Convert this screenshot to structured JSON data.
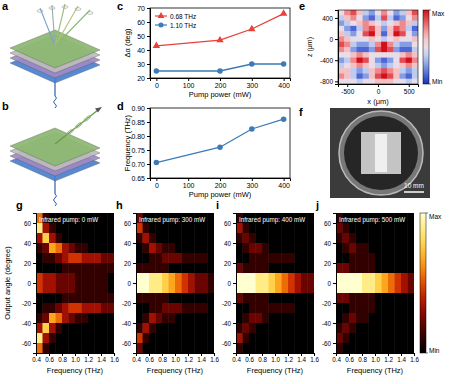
{
  "chart_data": [
    {
      "type": "illustration",
      "panel_label": "a"
    },
    {
      "type": "illustration",
      "panel_label": "b"
    },
    {
      "type": "line",
      "panel_label": "c",
      "x_label": "Pump power (mW)",
      "y_label": "Δα (deg)",
      "x": [
        0,
        200,
        300,
        400
      ],
      "series": [
        {
          "name": "0.68 THz",
          "color": "#e8403a",
          "marker": "triangle",
          "values": [
            43,
            47,
            55,
            66
          ]
        },
        {
          "name": "1.10 THz",
          "color": "#3c7ab8",
          "marker": "circle",
          "values": [
            25,
            25,
            30,
            30
          ]
        }
      ],
      "xlim": [
        -20,
        420
      ],
      "xticks": [
        0,
        100,
        200,
        300,
        400
      ],
      "ylim": [
        20,
        70
      ],
      "yticks": [
        20,
        30,
        40,
        50,
        60,
        70
      ],
      "legend": "upper left"
    },
    {
      "type": "line",
      "panel_label": "d",
      "x_label": "Pump power (mW)",
      "y_label": "Frequency (THz)",
      "x": [
        0,
        200,
        300,
        400
      ],
      "series": [
        {
          "color": "#3c7ab8",
          "marker": "circle",
          "values": [
            0.705,
            0.76,
            0.825,
            0.86
          ]
        }
      ],
      "xlim": [
        -20,
        420
      ],
      "xticks": [
        0,
        100,
        200,
        300,
        400
      ],
      "ylim": [
        0.65,
        0.9
      ],
      "yticks": [
        0.65,
        {
          "value": 0.7,
          "label": "0.70"
        },
        0.75,
        {
          "value": 0.8,
          "label": "0.80"
        },
        0.85,
        {
          "value": 0.9,
          "label": "0.90"
        }
      ]
    },
    {
      "type": "heatmap",
      "panel_label": "e",
      "x_label": "x (μm)",
      "y_label": "z (μm)",
      "x": [
        -600,
        -500,
        -400,
        -300,
        -200,
        -100,
        0,
        100,
        200,
        300,
        400,
        500,
        600
      ],
      "y": [
        500,
        400,
        300,
        200,
        100,
        0,
        -100,
        -200,
        -300,
        -400,
        -500,
        -600,
        -700,
        -800
      ],
      "values": [
        [
          4,
          6,
          7,
          5,
          3,
          2,
          4,
          6,
          4,
          2,
          3,
          5,
          7
        ],
        [
          3,
          5,
          6,
          4,
          2,
          1,
          3,
          7,
          3,
          1,
          2,
          4,
          6
        ],
        [
          2,
          3,
          4,
          5,
          6,
          5,
          4,
          3,
          4,
          5,
          6,
          5,
          3
        ],
        [
          4,
          2,
          1,
          3,
          6,
          7,
          5,
          2,
          5,
          7,
          6,
          3,
          1
        ],
        [
          5,
          3,
          2,
          4,
          7,
          8,
          5,
          1,
          5,
          8,
          7,
          4,
          2
        ],
        [
          6,
          5,
          4,
          4,
          4,
          5,
          4,
          3,
          4,
          5,
          4,
          4,
          5
        ],
        [
          7,
          6,
          3,
          2,
          2,
          3,
          6,
          8,
          6,
          3,
          2,
          2,
          4
        ],
        [
          6,
          5,
          2,
          1,
          1,
          2,
          7,
          8,
          7,
          2,
          1,
          1,
          3
        ],
        [
          4,
          4,
          5,
          6,
          5,
          4,
          4,
          4,
          4,
          4,
          5,
          6,
          5
        ],
        [
          2,
          3,
          6,
          8,
          7,
          4,
          2,
          1,
          2,
          4,
          7,
          8,
          6
        ],
        [
          3,
          4,
          5,
          6,
          5,
          4,
          3,
          2,
          3,
          4,
          5,
          6,
          5
        ],
        [
          5,
          5,
          3,
          2,
          3,
          5,
          6,
          7,
          6,
          5,
          3,
          2,
          3
        ],
        [
          6,
          5,
          3,
          1,
          2,
          5,
          7,
          8,
          7,
          5,
          2,
          1,
          3
        ],
        [
          4,
          4,
          4,
          3,
          4,
          4,
          5,
          5,
          5,
          4,
          4,
          3,
          4
        ]
      ],
      "xlim": [
        -650,
        650
      ],
      "xticks": [
        -500,
        0,
        500
      ],
      "ylim": [
        -850,
        550
      ],
      "yticks": [
        -800,
        -400,
        0,
        400
      ],
      "colorbar": {
        "range": [
          0,
          8
        ],
        "ticks": [
          {
            "value": 8,
            "label": "Max"
          },
          {
            "value": 0,
            "label": "Min"
          }
        ]
      }
    },
    {
      "type": "photo",
      "panel_label": "f",
      "scale_bar": "10 mm"
    },
    {
      "type": "heatmap",
      "panel_label": "g",
      "title": "Infrared pump: 0 mW",
      "x_label": "Frequency (THz)",
      "y_label": "Output angle (degree)",
      "x": [
        0.45,
        0.55,
        0.65,
        0.75,
        0.85,
        0.95,
        1.05,
        1.15,
        1.25,
        1.35,
        1.45,
        1.55
      ],
      "y": [
        65,
        55,
        45,
        35,
        25,
        15,
        5,
        -5,
        -15,
        -25,
        -35,
        -45,
        -55,
        -65
      ],
      "values": [
        [
          5,
          1,
          0,
          0,
          0,
          0,
          0,
          0,
          0,
          0,
          0,
          0
        ],
        [
          8,
          3,
          1,
          0,
          0,
          0,
          0,
          0,
          0,
          0,
          0,
          0
        ],
        [
          3,
          7,
          3,
          1,
          0,
          0,
          0,
          0,
          0,
          0,
          0,
          0
        ],
        [
          1,
          2,
          6,
          5,
          3,
          2,
          1,
          1,
          0,
          0,
          0,
          0
        ],
        [
          0,
          1,
          1,
          2,
          3,
          4,
          4,
          3,
          3,
          3,
          2,
          2
        ],
        [
          0,
          0,
          0,
          0,
          1,
          1,
          1,
          1,
          1,
          1,
          1,
          1
        ],
        [
          4,
          3,
          3,
          2,
          2,
          2,
          1,
          1,
          1,
          1,
          1,
          0
        ],
        [
          4,
          3,
          3,
          2,
          2,
          2,
          1,
          1,
          1,
          1,
          1,
          0
        ],
        [
          0,
          0,
          0,
          0,
          1,
          1,
          1,
          1,
          1,
          1,
          1,
          1
        ],
        [
          0,
          1,
          1,
          2,
          3,
          4,
          4,
          3,
          3,
          3,
          2,
          2
        ],
        [
          1,
          2,
          6,
          5,
          3,
          2,
          1,
          1,
          0,
          0,
          0,
          0
        ],
        [
          3,
          7,
          3,
          1,
          0,
          0,
          0,
          0,
          0,
          0,
          0,
          0
        ],
        [
          8,
          3,
          1,
          0,
          0,
          0,
          0,
          0,
          0,
          0,
          0,
          0
        ],
        [
          5,
          1,
          0,
          0,
          0,
          0,
          0,
          0,
          0,
          0,
          0,
          0
        ]
      ],
      "xlim": [
        0.4,
        1.6
      ],
      "xticks": [
        0.4,
        0.6,
        0.8,
        {
          "value": 1,
          "label": "1.0"
        },
        1.2,
        1.4,
        1.6
      ],
      "ylim": [
        -70,
        70
      ],
      "yticks": [
        60,
        40,
        20,
        0,
        -20,
        -40,
        -60
      ]
    },
    {
      "type": "heatmap",
      "panel_label": "h",
      "title": "Infrared pump: 300 mW",
      "x_label": "Frequency (THz)",
      "x": [
        0.45,
        0.55,
        0.65,
        0.75,
        0.85,
        0.95,
        1.05,
        1.15,
        1.25,
        1.35,
        1.45,
        1.55
      ],
      "y": [
        65,
        55,
        45,
        35,
        25,
        15,
        5,
        -5,
        -15,
        -25,
        -35,
        -45,
        -55,
        -65
      ],
      "values": [
        [
          2,
          0,
          0,
          0,
          0,
          0,
          0,
          0,
          0,
          0,
          0,
          0
        ],
        [
          4,
          1,
          0,
          0,
          0,
          0,
          0,
          0,
          0,
          0,
          0,
          0
        ],
        [
          1,
          3,
          1,
          0,
          0,
          0,
          0,
          0,
          0,
          0,
          0,
          0
        ],
        [
          0,
          1,
          3,
          2,
          1,
          1,
          0,
          0,
          0,
          0,
          0,
          0
        ],
        [
          0,
          0,
          1,
          1,
          2,
          2,
          2,
          1,
          1,
          1,
          1,
          0
        ],
        [
          1,
          1,
          1,
          1,
          1,
          0,
          0,
          0,
          0,
          0,
          0,
          0
        ],
        [
          9,
          9,
          8,
          8,
          7,
          6,
          5,
          4,
          3,
          2,
          2,
          1
        ],
        [
          9,
          9,
          8,
          8,
          7,
          6,
          5,
          4,
          3,
          2,
          2,
          1
        ],
        [
          1,
          1,
          1,
          1,
          1,
          0,
          0,
          0,
          0,
          0,
          0,
          0
        ],
        [
          0,
          0,
          1,
          1,
          2,
          2,
          2,
          1,
          1,
          1,
          1,
          0
        ],
        [
          0,
          1,
          3,
          2,
          1,
          1,
          0,
          0,
          0,
          0,
          0,
          0
        ],
        [
          1,
          3,
          1,
          0,
          0,
          0,
          0,
          0,
          0,
          0,
          0,
          0
        ],
        [
          4,
          1,
          0,
          0,
          0,
          0,
          0,
          0,
          0,
          0,
          0,
          0
        ],
        [
          2,
          0,
          0,
          0,
          0,
          0,
          0,
          0,
          0,
          0,
          0,
          0
        ]
      ],
      "xlim": [
        0.4,
        1.6
      ],
      "xticks": [
        0.4,
        0.6,
        0.8,
        {
          "value": 1,
          "label": "1.0"
        },
        1.2,
        1.4,
        1.6
      ],
      "ylim": [
        -70,
        70
      ],
      "yticks": [
        60,
        40,
        20,
        0,
        -20,
        -40,
        -60
      ]
    },
    {
      "type": "heatmap",
      "panel_label": "i",
      "title": "Infrared pump: 400 mW",
      "x_label": "Frequency (THz)",
      "x": [
        0.45,
        0.55,
        0.65,
        0.75,
        0.85,
        0.95,
        1.05,
        1.15,
        1.25,
        1.35,
        1.45,
        1.55
      ],
      "y": [
        65,
        55,
        45,
        35,
        25,
        15,
        5,
        -5,
        -15,
        -25,
        -35,
        -45,
        -55,
        -65
      ],
      "values": [
        [
          1,
          0,
          0,
          0,
          0,
          0,
          0,
          0,
          0,
          0,
          0,
          0
        ],
        [
          3,
          1,
          0,
          0,
          0,
          0,
          0,
          0,
          0,
          0,
          0,
          0
        ],
        [
          1,
          2,
          1,
          0,
          0,
          0,
          0,
          0,
          0,
          0,
          0,
          0
        ],
        [
          0,
          1,
          2,
          2,
          1,
          0,
          0,
          0,
          0,
          0,
          0,
          0
        ],
        [
          0,
          0,
          1,
          1,
          1,
          1,
          1,
          1,
          1,
          0,
          0,
          0
        ],
        [
          2,
          1,
          1,
          1,
          1,
          0,
          0,
          0,
          0,
          0,
          0,
          0
        ],
        [
          9,
          9,
          9,
          8,
          8,
          7,
          6,
          5,
          4,
          3,
          2,
          2
        ],
        [
          9,
          9,
          9,
          8,
          8,
          7,
          6,
          5,
          4,
          3,
          2,
          2
        ],
        [
          2,
          1,
          1,
          1,
          1,
          0,
          0,
          0,
          0,
          0,
          0,
          0
        ],
        [
          0,
          0,
          1,
          1,
          1,
          1,
          1,
          1,
          1,
          0,
          0,
          0
        ],
        [
          0,
          1,
          2,
          2,
          1,
          0,
          0,
          0,
          0,
          0,
          0,
          0
        ],
        [
          1,
          2,
          1,
          0,
          0,
          0,
          0,
          0,
          0,
          0,
          0,
          0
        ],
        [
          3,
          1,
          0,
          0,
          0,
          0,
          0,
          0,
          0,
          0,
          0,
          0
        ],
        [
          1,
          0,
          0,
          0,
          0,
          0,
          0,
          0,
          0,
          0,
          0,
          0
        ]
      ],
      "xlim": [
        0.4,
        1.6
      ],
      "xticks": [
        0.4,
        0.6,
        0.8,
        {
          "value": 1,
          "label": "1.0"
        },
        1.2,
        1.4,
        1.6
      ],
      "ylim": [
        -70,
        70
      ],
      "yticks": [
        60,
        40,
        20,
        0,
        -20,
        -40,
        -60
      ]
    },
    {
      "type": "heatmap",
      "panel_label": "j",
      "title": "Infrared pump: 500 mW",
      "x_label": "Frequency (THz)",
      "x": [
        0.45,
        0.55,
        0.65,
        0.75,
        0.85,
        0.95,
        1.05,
        1.15,
        1.25,
        1.35,
        1.45,
        1.55
      ],
      "y": [
        65,
        55,
        45,
        35,
        25,
        15,
        5,
        -5,
        -15,
        -25,
        -35,
        -45,
        -55,
        -65
      ],
      "values": [
        [
          1,
          0,
          0,
          0,
          0,
          0,
          0,
          0,
          0,
          0,
          0,
          0
        ],
        [
          2,
          1,
          0,
          0,
          0,
          0,
          0,
          0,
          0,
          0,
          0,
          0
        ],
        [
          1,
          2,
          1,
          0,
          0,
          0,
          0,
          0,
          0,
          0,
          0,
          0
        ],
        [
          0,
          1,
          2,
          1,
          1,
          0,
          0,
          0,
          0,
          0,
          0,
          0
        ],
        [
          0,
          0,
          1,
          1,
          1,
          1,
          0,
          0,
          0,
          0,
          0,
          0
        ],
        [
          2,
          2,
          1,
          1,
          1,
          1,
          0,
          0,
          0,
          0,
          0,
          0
        ],
        [
          9,
          9,
          9,
          9,
          8,
          8,
          7,
          6,
          5,
          4,
          3,
          2
        ],
        [
          9,
          9,
          9,
          9,
          8,
          8,
          7,
          6,
          5,
          4,
          3,
          2
        ],
        [
          2,
          2,
          1,
          1,
          1,
          1,
          0,
          0,
          0,
          0,
          0,
          0
        ],
        [
          0,
          0,
          1,
          1,
          1,
          1,
          0,
          0,
          0,
          0,
          0,
          0
        ],
        [
          0,
          1,
          2,
          1,
          1,
          0,
          0,
          0,
          0,
          0,
          0,
          0
        ],
        [
          1,
          2,
          1,
          0,
          0,
          0,
          0,
          0,
          0,
          0,
          0,
          0
        ],
        [
          2,
          1,
          0,
          0,
          0,
          0,
          0,
          0,
          0,
          0,
          0,
          0
        ],
        [
          1,
          0,
          0,
          0,
          0,
          0,
          0,
          0,
          0,
          0,
          0,
          0
        ]
      ],
      "xlim": [
        0.4,
        1.6
      ],
      "xticks": [
        0.4,
        0.6,
        0.8,
        {
          "value": 1,
          "label": "1.0"
        },
        1.2,
        1.4,
        1.6
      ],
      "ylim": [
        -70,
        70
      ],
      "yticks": [
        60,
        40,
        20,
        0,
        -20,
        -40,
        -60
      ],
      "colorbar": {
        "range": [
          0,
          9
        ],
        "ticks": [
          {
            "value": 9,
            "label": "Max"
          },
          {
            "value": 0,
            "label": "Min"
          }
        ]
      }
    }
  ]
}
